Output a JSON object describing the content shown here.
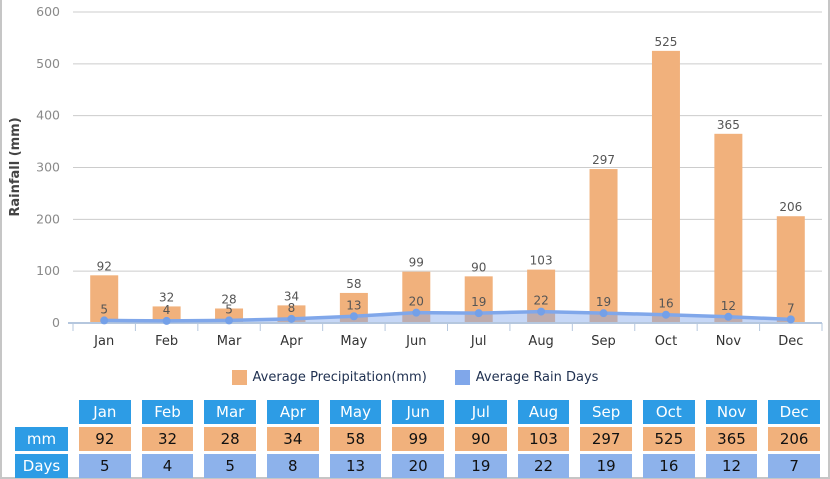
{
  "chart_data": {
    "type": "bar",
    "categories": [
      "Jan",
      "Feb",
      "Mar",
      "Apr",
      "May",
      "Jun",
      "Jul",
      "Aug",
      "Sep",
      "Oct",
      "Nov",
      "Dec"
    ],
    "series": [
      {
        "name": "Average Precipitation(mm)",
        "type": "bar",
        "values": [
          92,
          32,
          28,
          34,
          58,
          99,
          90,
          103,
          297,
          525,
          365,
          206
        ]
      },
      {
        "name": "Average Rain Days",
        "type": "line",
        "values": [
          5,
          4,
          5,
          8,
          13,
          20,
          19,
          22,
          19,
          16,
          12,
          7
        ]
      }
    ],
    "title": "",
    "xlabel": "",
    "ylabel": "Rainfall (mm)",
    "ylim": [
      0,
      600
    ],
    "yticks": [
      0,
      100,
      200,
      300,
      400,
      500,
      600
    ],
    "grid": true,
    "legend_position": "bottom"
  },
  "legend": {
    "items": [
      {
        "label": "Average Precipitation(mm)",
        "color": "#F1B17C"
      },
      {
        "label": "Average Rain Days",
        "color": "#80A7EA"
      }
    ]
  },
  "table": {
    "corner_label": "",
    "columns": [
      "Jan",
      "Feb",
      "Mar",
      "Apr",
      "May",
      "Jun",
      "Jul",
      "Aug",
      "Sep",
      "Oct",
      "Nov",
      "Dec"
    ],
    "header_bg": "#2D9CE5",
    "rows": [
      {
        "label": "mm",
        "bg": "#F1B17C",
        "values": [
          "92",
          "32",
          "28",
          "34",
          "58",
          "99",
          "90",
          "103",
          "297",
          "525",
          "365",
          "206"
        ]
      },
      {
        "label": "Days",
        "bg": "#8DB2EB",
        "values": [
          "5",
          "4",
          "5",
          "8",
          "13",
          "20",
          "19",
          "22",
          "19",
          "16",
          "12",
          "7"
        ]
      }
    ]
  },
  "colors": {
    "bar": "#F1B17C",
    "line": "#80A7EA",
    "marker": "#74A0E8",
    "area": "rgba(128,167,234,0.45)",
    "grid": "#CCCCCC",
    "axis": "#B5C7DE",
    "header_blue": "#2D9CE5",
    "days_blue": "#8DB2EB",
    "page_border": "#C6C6C6"
  }
}
